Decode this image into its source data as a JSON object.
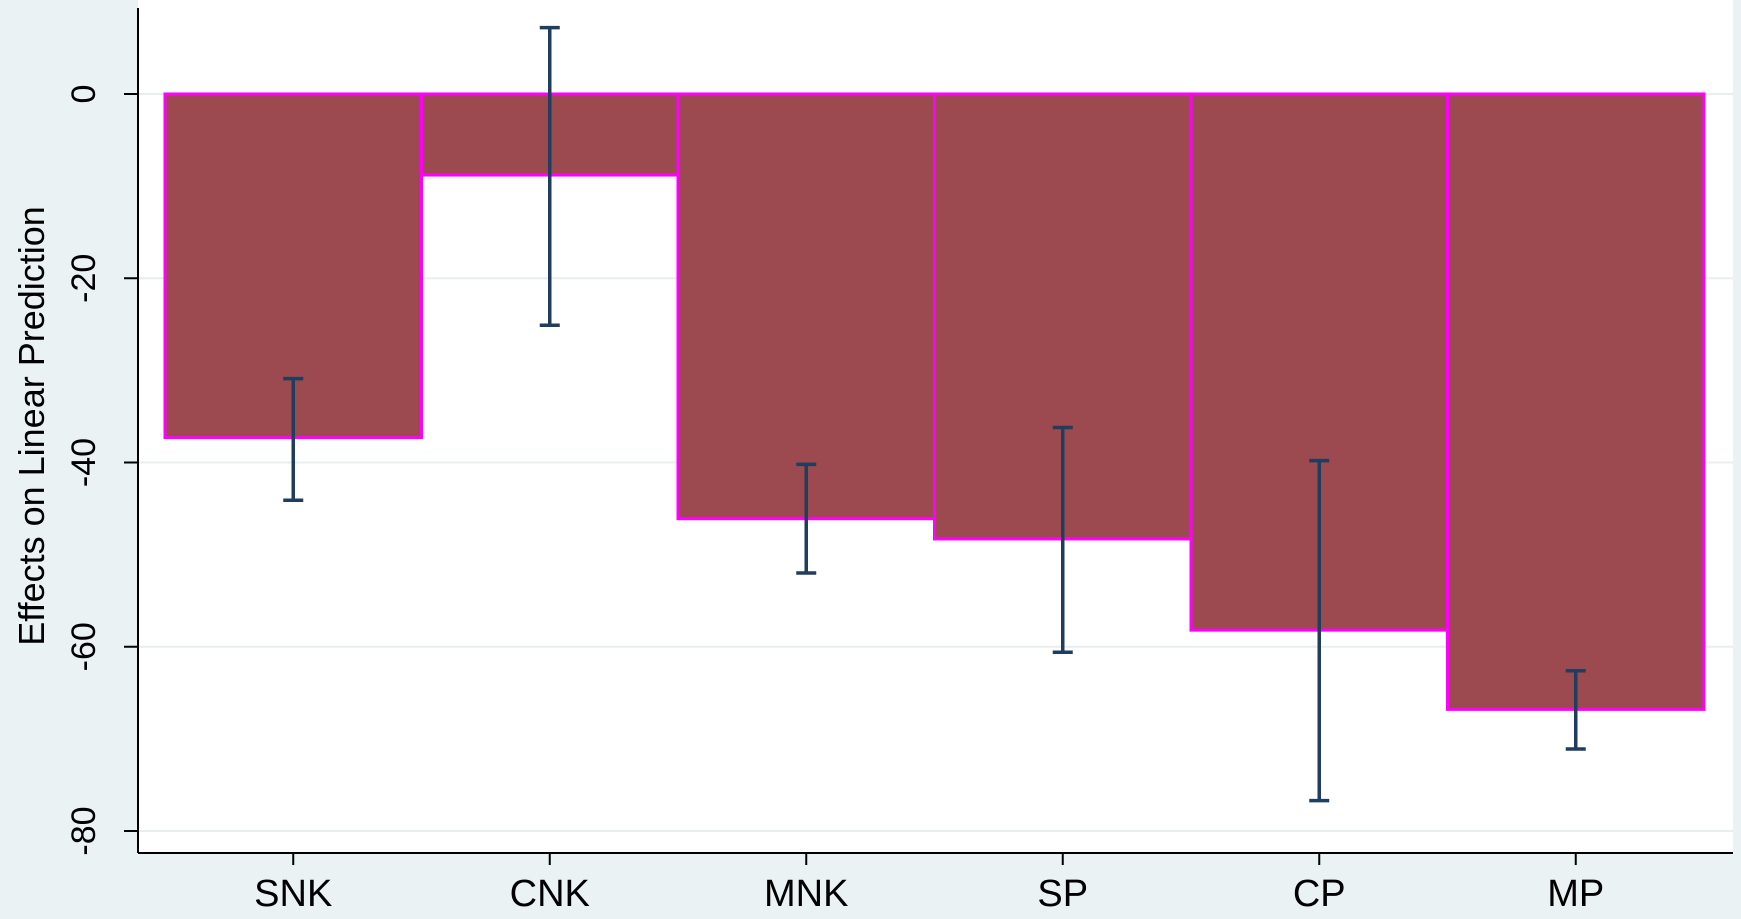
{
  "chart_data": {
    "type": "bar",
    "title": "",
    "xlabel": "",
    "ylabel": "Effects on Linear Prediction",
    "categories": [
      "SNK",
      "CNK",
      "MNK",
      "SP",
      "CP",
      "MP"
    ],
    "values": [
      -37.3,
      -8.8,
      -46.1,
      -48.3,
      -58.2,
      -66.8
    ],
    "ci_lower": [
      -44.1,
      -25.1,
      -52.0,
      -60.6,
      -76.7,
      -71.1
    ],
    "ci_upper": [
      -30.9,
      7.2,
      -40.2,
      -36.2,
      -39.8,
      -62.6
    ],
    "yticks": [
      0,
      -20,
      -40,
      -60,
      -80
    ],
    "ylim": [
      -82.5,
      9.5
    ],
    "grid": true,
    "legend": "none",
    "colors": {
      "bar_fill": "#9c4a4f",
      "bar_outline": "#ff00ff",
      "error_bar": "#1f3d5e",
      "plot_background": "#ffffff",
      "outer_background": "#eaf2f3",
      "gridline": "#e8eef0"
    }
  }
}
